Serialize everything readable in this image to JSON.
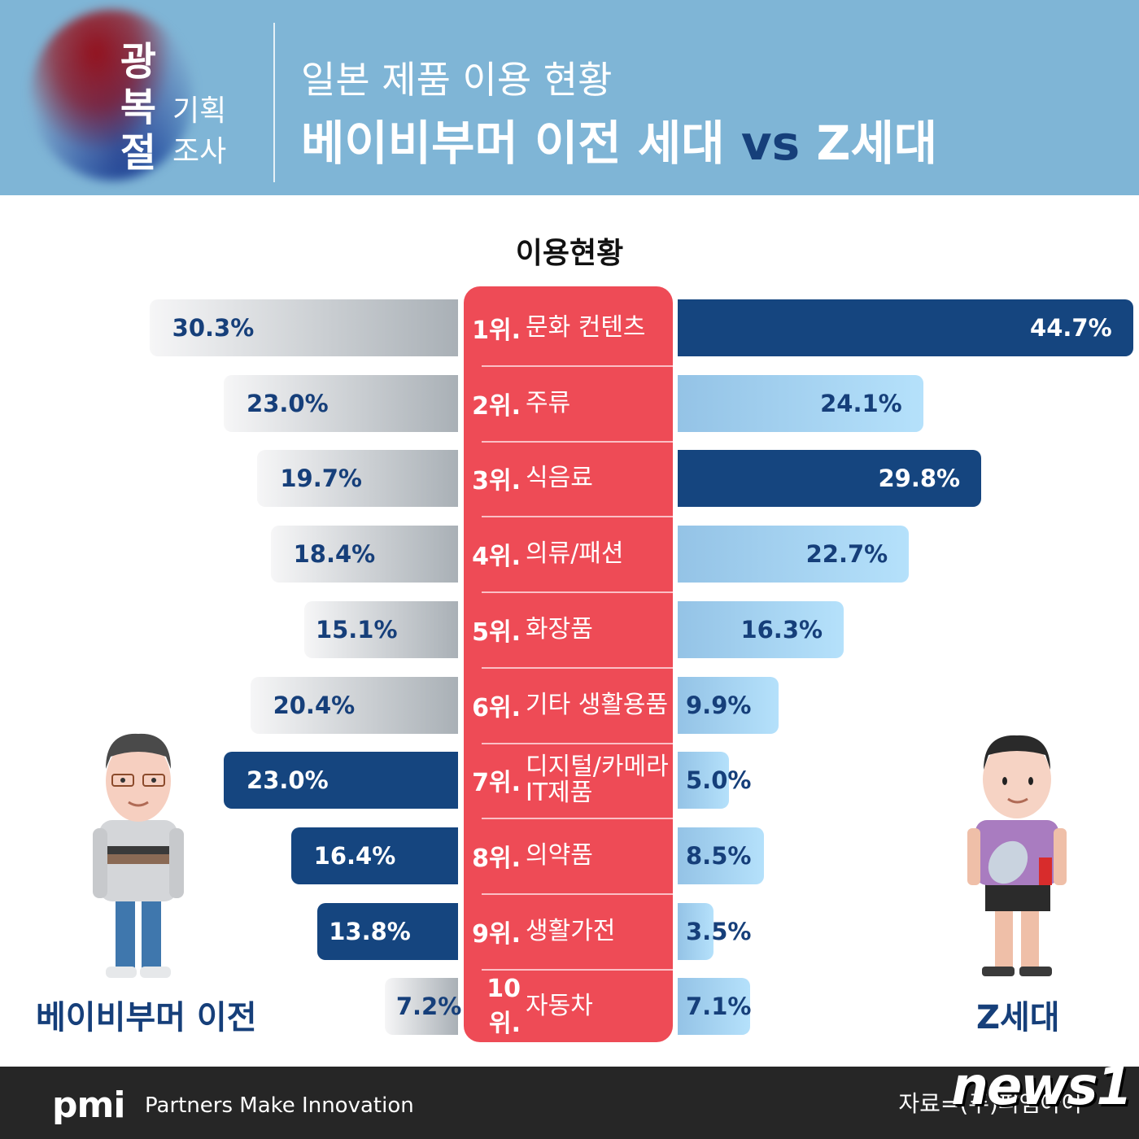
{
  "header": {
    "logo_big": [
      "광",
      "복",
      "절"
    ],
    "logo_small": [
      "기획",
      "조사"
    ],
    "title_line1": "일본 제품 이용 현황",
    "title_line2_a": "베이비부머 이전 세대",
    "title_line2_vs": "vs",
    "title_line2_b": "Z세대"
  },
  "section_title": "이용현황",
  "colors": {
    "header_bg": "#7fb5d6",
    "center_panel": "#ee4b56",
    "navy": "#15457f",
    "light_blue": "#b5e1fb",
    "gray": "#a9b0b6",
    "footer_bg": "#262626"
  },
  "ranks": [
    {
      "rank": "1위.",
      "label": "문화 컨텐츠"
    },
    {
      "rank": "2위.",
      "label": "주류"
    },
    {
      "rank": "3위.",
      "label": "식음료"
    },
    {
      "rank": "4위.",
      "label": "의류/패션"
    },
    {
      "rank": "5위.",
      "label": "화장품"
    },
    {
      "rank": "6위.",
      "label": "기타 생활용품"
    },
    {
      "rank": "7위.",
      "label": "디지털/카메라 IT제품"
    },
    {
      "rank": "8위.",
      "label": "의약품"
    },
    {
      "rank": "9위.",
      "label": "생활가전"
    },
    {
      "rank": "10위.",
      "label": "자동차"
    }
  ],
  "left_labels": [
    "30.3%",
    "23.0%",
    "19.7%",
    "18.4%",
    "15.1%",
    "20.4%",
    "23.0%",
    "16.4%",
    "13.8%",
    "7.2%"
  ],
  "right_labels": [
    "44.7%",
    "24.1%",
    "29.8%",
    "22.7%",
    "16.3%",
    "9.9%",
    "5.0%",
    "8.5%",
    "3.5%",
    "7.1%"
  ],
  "people": {
    "left_label": "베이비부머 이전",
    "right_label": "Z세대"
  },
  "footer": {
    "pmi_logo": "pmi",
    "tagline": "Partners Make Innovation",
    "source": "자료=(주)피엠아이",
    "watermark": "news1"
  },
  "chart_data": {
    "type": "bar",
    "orientation": "horizontal-diverging",
    "title": "일본 제품 이용 현황 — 베이비부머 이전 세대 vs Z세대",
    "subtitle": "이용현황",
    "categories": [
      "1위. 문화 컨텐츠",
      "2위. 주류",
      "3위. 식음료",
      "4위. 의류/패션",
      "5위. 화장품",
      "6위. 기타 생활용품",
      "7위. 디지털/카메라 IT제품",
      "8위. 의약품",
      "9위. 생활가전",
      "10위. 자동차"
    ],
    "series": [
      {
        "name": "베이비부머 이전",
        "side": "left",
        "values": [
          30.3,
          23.0,
          19.7,
          18.4,
          15.1,
          20.4,
          23.0,
          16.4,
          13.8,
          7.2
        ],
        "highlight": [
          false,
          false,
          false,
          false,
          false,
          false,
          true,
          true,
          true,
          false
        ]
      },
      {
        "name": "Z세대",
        "side": "right",
        "values": [
          44.7,
          24.1,
          29.8,
          22.7,
          16.3,
          9.9,
          5.0,
          8.5,
          3.5,
          7.1
        ],
        "highlight": [
          true,
          false,
          true,
          false,
          false,
          false,
          false,
          false,
          false,
          false
        ]
      }
    ],
    "unit": "%",
    "xlabel": "",
    "ylabel": "",
    "grid": false,
    "legend_position": "bottom (character labels)",
    "source": "자료=(주)피엠아이"
  }
}
